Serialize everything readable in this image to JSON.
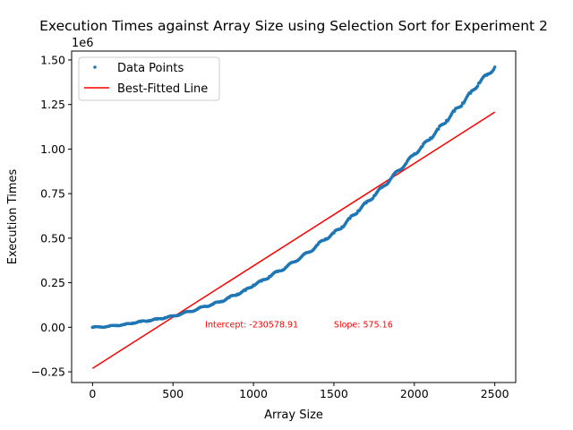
{
  "chart_data": {
    "type": "scatter",
    "title": "Execution Times against Array Size using Selection Sort for Experiment 2",
    "xlabel": "Array Size",
    "ylabel": "Execution Times",
    "y_offset_label": "1e6",
    "xlim": [
      -130,
      2630
    ],
    "ylim": [
      -0.31,
      1.55
    ],
    "x_ticks": [
      0,
      500,
      1000,
      1500,
      2000,
      2500
    ],
    "x_tick_labels": [
      "0",
      "500",
      "1000",
      "1500",
      "2000",
      "2500"
    ],
    "y_ticks": [
      -0.25,
      0.0,
      0.25,
      0.5,
      0.75,
      1.0,
      1.25,
      1.5
    ],
    "y_tick_labels": [
      "−0.25",
      "0.00",
      "0.25",
      "0.50",
      "0.75",
      "1.00",
      "1.25",
      "1.50"
    ],
    "grid": false,
    "legend": {
      "position": "top-left",
      "entries": [
        {
          "label": "Data Points",
          "marker": "dot",
          "color": "#1f77b4"
        },
        {
          "label": "Best-Fitted Line",
          "marker": "line",
          "color": "#ff0000"
        }
      ]
    },
    "series": [
      {
        "name": "Data Points",
        "kind": "scatter",
        "color": "#1f77b4",
        "x": [
          0,
          50,
          100,
          150,
          200,
          250,
          300,
          350,
          400,
          450,
          500,
          550,
          600,
          650,
          700,
          750,
          800,
          850,
          900,
          950,
          1000,
          1050,
          1100,
          1150,
          1200,
          1250,
          1300,
          1350,
          1400,
          1450,
          1500,
          1550,
          1600,
          1650,
          1700,
          1750,
          1800,
          1850,
          1900,
          1950,
          2000,
          2050,
          2100,
          2150,
          2200,
          2250,
          2300,
          2350,
          2400,
          2450,
          2500
        ],
        "y": [
          0.0,
          0.002,
          0.005,
          0.011,
          0.015,
          0.024,
          0.032,
          0.038,
          0.045,
          0.054,
          0.062,
          0.075,
          0.088,
          0.101,
          0.118,
          0.13,
          0.146,
          0.167,
          0.186,
          0.207,
          0.237,
          0.259,
          0.285,
          0.312,
          0.335,
          0.366,
          0.397,
          0.424,
          0.464,
          0.497,
          0.529,
          0.563,
          0.611,
          0.653,
          0.697,
          0.738,
          0.785,
          0.829,
          0.879,
          0.921,
          0.973,
          1.015,
          1.062,
          1.112,
          1.16,
          1.213,
          1.258,
          1.314,
          1.37,
          1.414,
          1.46
        ],
        "y_unit_multiplier": 1000000
      },
      {
        "name": "Best-Fitted Line",
        "kind": "line",
        "color": "#ff0000",
        "x": [
          0,
          2500
        ],
        "y": [
          -0.2306,
          1.2073
        ]
      }
    ],
    "annotations": [
      {
        "text": "Intercept: -230578.91",
        "x": 700,
        "y": 0.0,
        "color": "#ff0000"
      },
      {
        "text": "Slope: 575.16",
        "x": 1500,
        "y": 0.0,
        "color": "#ff0000"
      }
    ]
  }
}
